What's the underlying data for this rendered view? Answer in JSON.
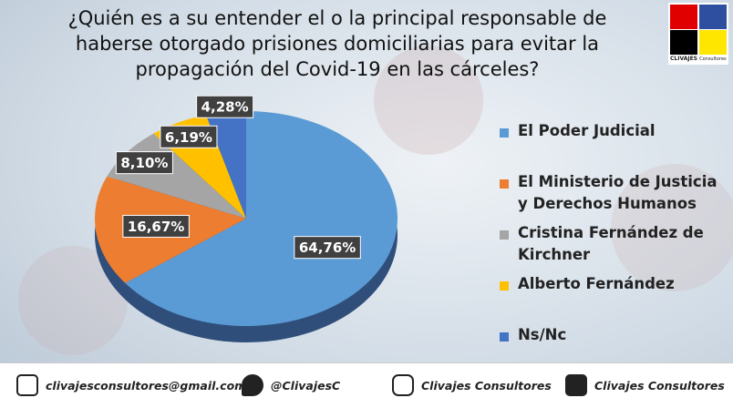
{
  "chart_data": {
    "type": "pie",
    "title": "¿Quién es a su entender el o la principal responsable de haberse otorgado prisiones domiciliarias para evitar la propagación del Covid-19 en las cárceles?",
    "categories": [
      "El Poder Judicial",
      "El Ministerio de Justicia y Derechos Humanos",
      "Cristina Fernández de Kirchner",
      "Alberto Fernández",
      "Ns/Nc"
    ],
    "values": [
      64.76,
      16.67,
      8.1,
      6.19,
      4.28
    ],
    "value_labels": [
      "64,76%",
      "16,67%",
      "8,10%",
      "6,19%",
      "4,28%"
    ],
    "colors": [
      "#5b9bd5",
      "#ed7d31",
      "#a5a5a5",
      "#ffc000",
      "#4472c4"
    ]
  },
  "logo": {
    "name": "CLIVAJES",
    "sub": "Consultores"
  },
  "footer": {
    "email": "clivajesconsultores@gmail.com",
    "twitter": "@ClivajesC",
    "instagram": "Clivajes Consultores",
    "facebook": "Clivajes Consultores"
  }
}
